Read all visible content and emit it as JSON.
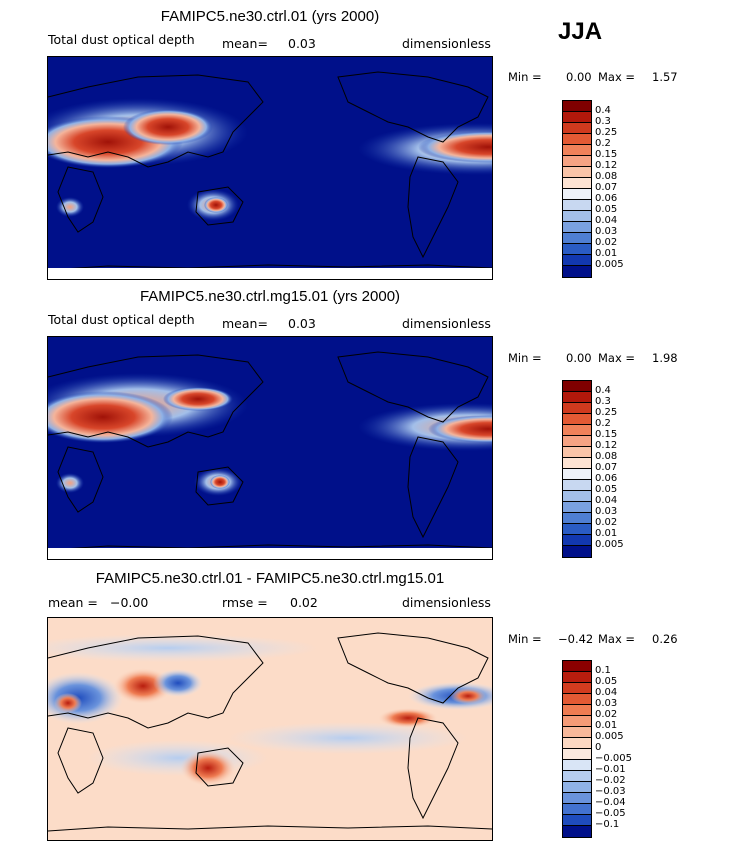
{
  "season": "JJA",
  "panels": [
    {
      "title": "FAMIPC5.ne30.ctrl.01 (yrs 2000)",
      "left_label": "Total dust optical depth",
      "mean_label": "mean=",
      "mean_value": "0.03",
      "units": "dimensionless",
      "min_label": "Min =",
      "min_value": "0.00",
      "max_label": "Max =",
      "max_value": "1.57"
    },
    {
      "title": "FAMIPC5.ne30.ctrl.mg15.01 (yrs 2000)",
      "left_label": "Total dust optical depth",
      "mean_label": "mean=",
      "mean_value": "0.03",
      "units": "dimensionless",
      "min_label": "Min =",
      "min_value": "0.00",
      "max_label": "Max =",
      "max_value": "1.98"
    },
    {
      "title": "FAMIPC5.ne30.ctrl.01 - FAMIPC5.ne30.ctrl.mg15.01",
      "mean_label": "mean =",
      "mean_value": "−0.00",
      "rmse_label": "rmse =",
      "rmse_value": "0.02",
      "units": "dimensionless",
      "min_label": "Min =",
      "min_value": "−0.42",
      "max_label": "Max =",
      "max_value": "0.26"
    }
  ],
  "colorbars": {
    "field": {
      "labels": [
        "0.4",
        "0.3",
        "0.25",
        "0.2",
        "0.15",
        "0.12",
        "0.08",
        "0.07",
        "0.06",
        "0.05",
        "0.04",
        "0.03",
        "0.02",
        "0.01",
        "0.005"
      ],
      "colors": [
        "#7f0000",
        "#b2180b",
        "#cf3a1e",
        "#e35a34",
        "#f0825a",
        "#f6a383",
        "#fac4a8",
        "#fde3d3",
        "#eef2f9",
        "#c8d8f1",
        "#a3bfe9",
        "#7aa1e0",
        "#4f7fd3",
        "#2a5cc4",
        "#1238b0",
        "#00108a"
      ]
    },
    "diff": {
      "labels": [
        "0.1",
        "0.05",
        "0.04",
        "0.03",
        "0.02",
        "0.01",
        "0.005",
        "0",
        "−0.005",
        "−0.01",
        "−0.02",
        "−0.03",
        "−0.04",
        "−0.05",
        "−0.1"
      ],
      "colors": [
        "#8b0000",
        "#b81d0e",
        "#d23c1f",
        "#e35a34",
        "#ef7c52",
        "#f59b77",
        "#f8b89a",
        "#fcd8c2",
        "#fbe9de",
        "#d9e5f6",
        "#b6cdef",
        "#90b2e6",
        "#6a93dc",
        "#4372cf",
        "#1f4cbd",
        "#00108a"
      ]
    }
  },
  "chart_data": [
    {
      "type": "heatmap",
      "title": "FAMIPC5.ne30.ctrl.01 (yrs 2000)",
      "variable": "Total dust optical depth",
      "season": "JJA",
      "mean": 0.03,
      "min": 0.0,
      "max": 1.57,
      "units": "dimensionless",
      "contour_levels": [
        0.005,
        0.01,
        0.02,
        0.03,
        0.04,
        0.05,
        0.06,
        0.07,
        0.08,
        0.12,
        0.15,
        0.2,
        0.25,
        0.3,
        0.4
      ]
    },
    {
      "type": "heatmap",
      "title": "FAMIPC5.ne30.ctrl.mg15.01 (yrs 2000)",
      "variable": "Total dust optical depth",
      "season": "JJA",
      "mean": 0.03,
      "min": 0.0,
      "max": 1.98,
      "units": "dimensionless",
      "contour_levels": [
        0.005,
        0.01,
        0.02,
        0.03,
        0.04,
        0.05,
        0.06,
        0.07,
        0.08,
        0.12,
        0.15,
        0.2,
        0.25,
        0.3,
        0.4
      ]
    },
    {
      "type": "heatmap",
      "title": "FAMIPC5.ne30.ctrl.01 - FAMIPC5.ne30.ctrl.mg15.01",
      "season": "JJA",
      "mean": -0.0,
      "rmse": 0.02,
      "min": -0.42,
      "max": 0.26,
      "units": "dimensionless",
      "contour_levels": [
        -0.1,
        -0.05,
        -0.04,
        -0.03,
        -0.02,
        -0.01,
        -0.005,
        0,
        0.005,
        0.01,
        0.02,
        0.03,
        0.04,
        0.05,
        0.1
      ]
    }
  ]
}
